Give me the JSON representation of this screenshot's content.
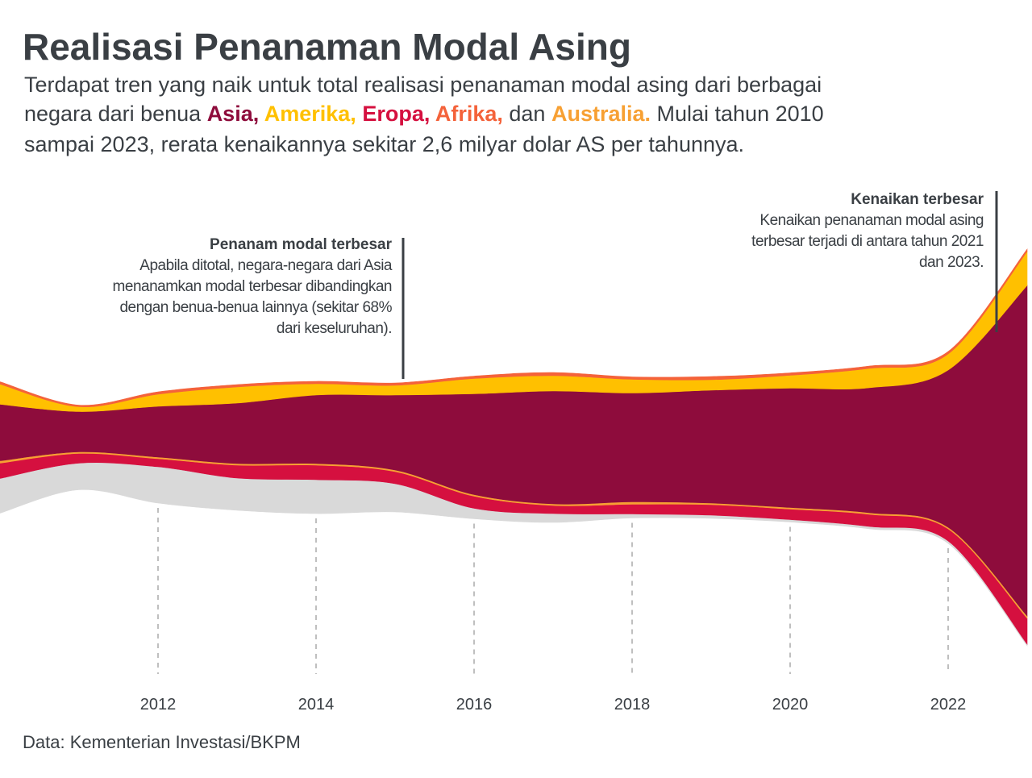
{
  "chart_data": {
    "type": "streamgraph",
    "title": "Realisasi Penanaman Modal Asing",
    "subtitle_lines": [
      [
        {
          "text": "Terdapat tren yang naik untuk total realisasi penanaman modal asing dari berbagai"
        }
      ],
      [
        {
          "text": "negara dari benua "
        },
        {
          "text": "Asia,",
          "color": "#8e0c3c"
        },
        {
          "text": " Amerika,",
          "color": "#ffc000"
        },
        {
          "text": " Eropa,",
          "color": "#d5103f"
        },
        {
          "text": " Afrika,",
          "color": "#f4623a"
        },
        {
          "text": " dan "
        },
        {
          "text": "Australia.",
          "color": "#f7a033"
        },
        {
          "text": " Mulai tahun 2010"
        }
      ],
      [
        {
          "text": "sampai 2023, rerata kenaikannya sekitar 2,6 milyar dolar AS per tahunnya."
        }
      ]
    ],
    "x": [
      2010,
      2011,
      2012,
      2013,
      2014,
      2015,
      2016,
      2017,
      2018,
      2019,
      2020,
      2021,
      2022,
      2023
    ],
    "xlim": [
      2010,
      2023
    ],
    "xticks": [
      2012,
      2014,
      2016,
      2018,
      2020,
      2022
    ],
    "series": [
      {
        "color": "#d9d9d9",
        "values": [
          4.3,
          3.3,
          4.5,
          4.0,
          4.2,
          3.5,
          1.3,
          1.1,
          0.5,
          0.4,
          0.3,
          0.3,
          0.3,
          0.2
        ]
      },
      {
        "name": "Eropa",
        "color": "#d5103f",
        "values": [
          1.9,
          1.2,
          1.0,
          1.6,
          1.8,
          1.5,
          1.5,
          1.0,
          1.2,
          1.3,
          1.3,
          1.5,
          1.5,
          3.2
        ]
      },
      {
        "name": "Australia",
        "color": "#f7a033",
        "values": [
          0.3,
          0.2,
          0.2,
          0.2,
          0.2,
          0.2,
          0.2,
          0.2,
          0.3,
          0.2,
          0.2,
          0.2,
          0.2,
          0.3
        ]
      },
      {
        "name": "Asia",
        "color": "#8e0c3c",
        "values": [
          7.0,
          5.0,
          6.3,
          7.5,
          8.5,
          9.3,
          12.5,
          14.0,
          13.5,
          14.0,
          14.8,
          15.5,
          19.5,
          41.0
        ]
      },
      {
        "name": "Amerika",
        "color": "#ffc000",
        "values": [
          2.5,
          0.6,
          1.5,
          2.0,
          1.4,
          1.2,
          1.9,
          1.9,
          1.7,
          1.3,
          1.6,
          2.4,
          2.0,
          4.2
        ]
      },
      {
        "name": "Afrika",
        "color": "#f4623a",
        "values": [
          0.3,
          0.2,
          0.3,
          0.3,
          0.3,
          0.3,
          0.3,
          0.4,
          0.3,
          0.4,
          0.3,
          0.3,
          0.3,
          0.3
        ]
      }
    ],
    "annotations": [
      {
        "title": "Penanam modal terbesar",
        "lines": [
          "Apabila ditotal, negara-negara dari Asia",
          "menanamkan modal terbesar dibandingkan",
          "dengan benua-benua lainnya (sekitar 68%",
          "dari keseluruhan)."
        ]
      },
      {
        "title": "Kenaikan terbesar",
        "lines": [
          "Kenaikan penanaman modal asing",
          "terbesar terjadi di antara tahun 2021",
          "dan 2023."
        ]
      }
    ],
    "source": "Data: Kementerian Investasi/BKPM"
  }
}
